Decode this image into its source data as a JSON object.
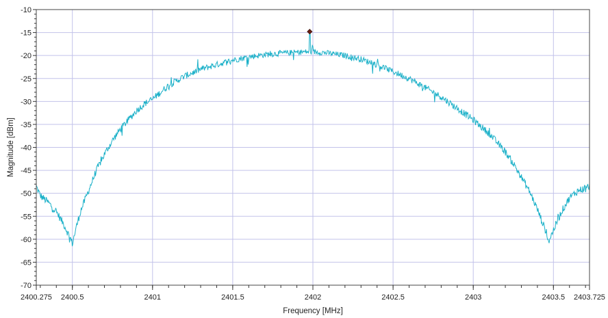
{
  "chart_data": {
    "type": "line",
    "title": "",
    "xlabel": "Frequency [MHz]",
    "ylabel": "Magnitude [dBm]",
    "xlim": [
      2400.275,
      2403.725
    ],
    "ylim": [
      -70,
      -10
    ],
    "x_ticks": [
      {
        "value": 2400.275,
        "label": "2400.275"
      },
      {
        "value": 2400.5,
        "label": "2400.5"
      },
      {
        "value": 2401,
        "label": "2401"
      },
      {
        "value": 2401.5,
        "label": "2401.5"
      },
      {
        "value": 2402,
        "label": "2402"
      },
      {
        "value": 2402.5,
        "label": "2402.5"
      },
      {
        "value": 2403,
        "label": "2403"
      },
      {
        "value": 2403.5,
        "label": "2403.5"
      },
      {
        "value": 2403.725,
        "label": "2403.725"
      }
    ],
    "y_ticks": [
      {
        "value": -10,
        "label": "-10"
      },
      {
        "value": -15,
        "label": "-15"
      },
      {
        "value": -20,
        "label": "-20"
      },
      {
        "value": -25,
        "label": "-25"
      },
      {
        "value": -30,
        "label": "-30"
      },
      {
        "value": -35,
        "label": "-35"
      },
      {
        "value": -40,
        "label": "-40"
      },
      {
        "value": -45,
        "label": "-45"
      },
      {
        "value": -50,
        "label": "-50"
      },
      {
        "value": -55,
        "label": "-55"
      },
      {
        "value": -60,
        "label": "-60"
      },
      {
        "value": -65,
        "label": "-65"
      },
      {
        "value": -70,
        "label": "-70"
      }
    ],
    "grid": true,
    "series": [
      {
        "color": "#1ab0c8",
        "x": [
          2400.275,
          2400.3,
          2400.35,
          2400.4,
          2400.45,
          2400.49,
          2400.5,
          2400.52,
          2400.55,
          2400.6,
          2400.65,
          2400.7,
          2400.75,
          2400.8,
          2400.85,
          2400.9,
          2400.95,
          2401.0,
          2401.1,
          2401.2,
          2401.3,
          2401.4,
          2401.5,
          2401.6,
          2401.7,
          2401.8,
          2401.9,
          2401.95,
          2401.98,
          2402.0,
          2402.05,
          2402.1,
          2402.2,
          2402.3,
          2402.4,
          2402.5,
          2402.6,
          2402.7,
          2402.8,
          2402.9,
          2403.0,
          2403.05,
          2403.1,
          2403.15,
          2403.2,
          2403.25,
          2403.3,
          2403.35,
          2403.4,
          2403.45,
          2403.47,
          2403.5,
          2403.55,
          2403.6,
          2403.65,
          2403.7,
          2403.725
        ],
        "y": [
          -48.5,
          -50.5,
          -52,
          -54,
          -57,
          -60,
          -61,
          -58,
          -54,
          -49.5,
          -45,
          -41.5,
          -38.5,
          -36,
          -34,
          -32,
          -30.5,
          -29.5,
          -26.5,
          -24.5,
          -23,
          -22,
          -21,
          -20.3,
          -19.8,
          -19.5,
          -19.3,
          -19.2,
          -19.2,
          -19.2,
          -19.3,
          -19.5,
          -20,
          -20.8,
          -22,
          -23.5,
          -25,
          -27,
          -29,
          -31.5,
          -34,
          -35.5,
          -37,
          -39,
          -41,
          -43.5,
          -46.5,
          -49.5,
          -53.5,
          -58,
          -60.5,
          -58,
          -54,
          -51,
          -49.5,
          -48.8,
          -48.5
        ]
      }
    ],
    "marker": {
      "x": 2401.98,
      "y": -14.8,
      "color": "#6b1f14"
    }
  }
}
